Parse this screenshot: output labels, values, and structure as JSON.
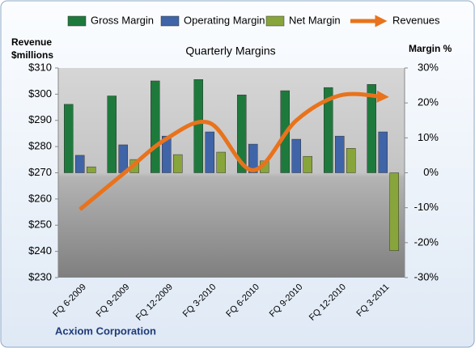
{
  "chart_data": {
    "type": "bar-line",
    "title": "Quarterly Margins",
    "y_label": "Revenue $millions",
    "y2_label": "Margin %",
    "footer": "Acxiom Corporation",
    "categories": [
      "FQ 6-2009",
      "FQ 9-2009",
      "FQ 12-2009",
      "FQ 3-2010",
      "FQ 6-2010",
      "FQ 9-2010",
      "FQ 12-2010",
      "FQ 3-2011"
    ],
    "series": [
      {
        "name": "Gross Margin",
        "type": "bar",
        "axis": "y2",
        "color": "#1e7a3c",
        "values": [
          19.6,
          22,
          26.3,
          26.7,
          22.3,
          23.5,
          24.4,
          25.3
        ]
      },
      {
        "name": "Operating Margin",
        "type": "bar",
        "axis": "y2",
        "color": "#3f64a8",
        "values": [
          5,
          8,
          10.5,
          11.7,
          8.2,
          9.6,
          10.5,
          11.7
        ]
      },
      {
        "name": "Net Margin",
        "type": "bar",
        "axis": "y2",
        "color": "#88a53c",
        "values": [
          1.7,
          3.8,
          5.2,
          5.9,
          3.4,
          4.7,
          7,
          -22.3
        ]
      },
      {
        "name": "Revenues",
        "type": "line",
        "axis": "y",
        "color": "#e8731c",
        "values": [
          256,
          269.6,
          283,
          289,
          271,
          290,
          299.5,
          299
        ]
      }
    ],
    "ylim": [
      230,
      310
    ],
    "yticks": [
      {
        "value": 230,
        "label": "$230"
      },
      {
        "value": 240,
        "label": "$240"
      },
      {
        "value": 250,
        "label": "$250"
      },
      {
        "value": 260,
        "label": "$260"
      },
      {
        "value": 270,
        "label": "$270"
      },
      {
        "value": 280,
        "label": "$280"
      },
      {
        "value": 290,
        "label": "$290"
      },
      {
        "value": 300,
        "label": "$300"
      },
      {
        "value": 310,
        "label": "$310"
      }
    ],
    "y2lim": [
      -30,
      30
    ],
    "y2ticks": [
      {
        "value": -30,
        "label": "-30%"
      },
      {
        "value": -20,
        "label": "-20%"
      },
      {
        "value": -10,
        "label": "-10%"
      },
      {
        "value": 0,
        "label": "0%"
      },
      {
        "value": 10,
        "label": "10%"
      },
      {
        "value": 20,
        "label": "20%"
      },
      {
        "value": 30,
        "label": "30%"
      }
    ],
    "legend": "top"
  }
}
